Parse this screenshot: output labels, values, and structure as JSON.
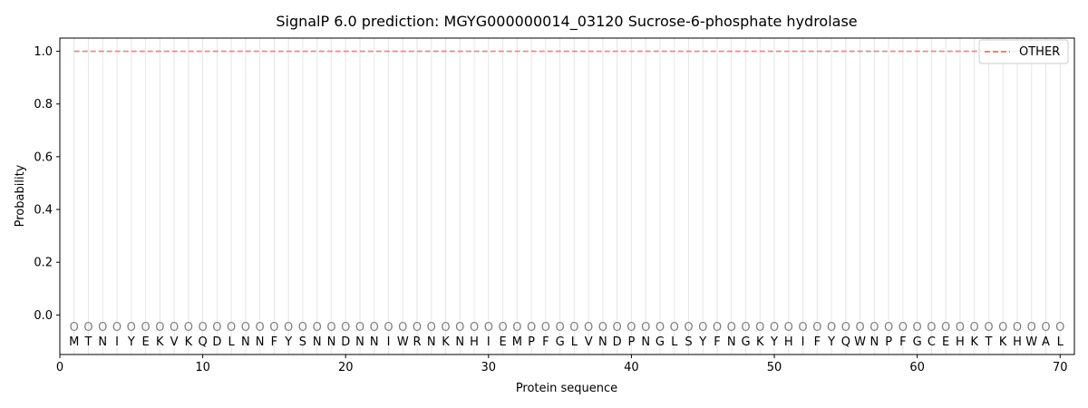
{
  "chart_data": {
    "type": "line",
    "title": "SignalP 6.0 prediction: MGYG000000014_03120 Sucrose-6-phosphate hydrolase",
    "xlabel": "Protein sequence",
    "ylabel": "Probability",
    "xlim": [
      0,
      71
    ],
    "ylim": [
      -0.15,
      1.05
    ],
    "xticks": [
      0,
      10,
      20,
      30,
      40,
      50,
      60,
      70
    ],
    "yticks": [
      "0.0",
      "0.2",
      "0.4",
      "0.6",
      "0.8",
      "1.0"
    ],
    "grid": "vertical lines at each residue",
    "legend_position": "top-right",
    "series": [
      {
        "name": "OTHER",
        "color": "#f08080",
        "style": "dashed",
        "x_start": 1,
        "x_end": 70,
        "value": 1.0
      }
    ],
    "marker_letter": "O",
    "marker_row_value": -0.045,
    "residue_row_value": -0.1,
    "sequence": [
      "M",
      "T",
      "N",
      "I",
      "Y",
      "E",
      "K",
      "V",
      "K",
      "Q",
      "D",
      "L",
      "N",
      "N",
      "F",
      "Y",
      "S",
      "N",
      "N",
      "D",
      "N",
      "N",
      "I",
      "W",
      "R",
      "N",
      "K",
      "N",
      "H",
      "I",
      "E",
      "M",
      "P",
      "F",
      "G",
      "L",
      "V",
      "N",
      "D",
      "P",
      "N",
      "G",
      "L",
      "S",
      "Y",
      "F",
      "N",
      "G",
      "K",
      "Y",
      "H",
      "I",
      "F",
      "Y",
      "Q",
      "W",
      "N",
      "P",
      "F",
      "G",
      "C",
      "E",
      "H",
      "K",
      "T",
      "K",
      "H",
      "W",
      "A",
      "L"
    ]
  }
}
